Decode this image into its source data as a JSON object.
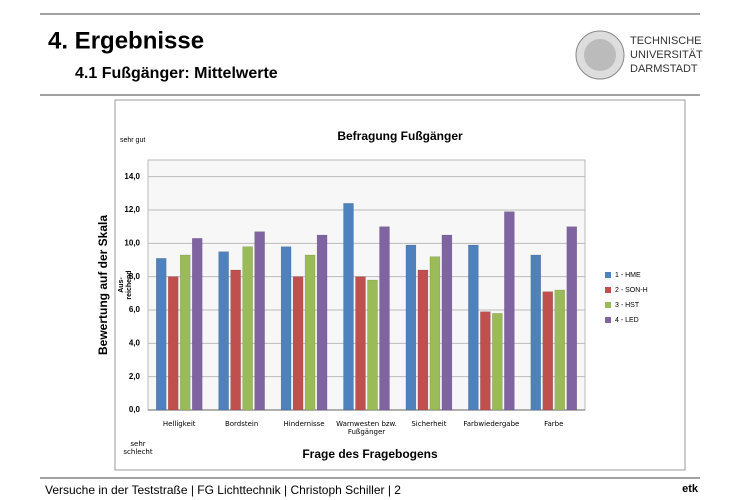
{
  "header": {
    "title": "4. Ergebnisse",
    "subtitle": "4.1 Fußgänger: Mittelwerte",
    "logo": [
      "TECHNISCHE",
      "UNIVERSITÄT",
      "DARMSTADT"
    ]
  },
  "footer": {
    "text": "Versuche in der Teststraße | FG Lichttechnik | Christoph Schiller | 2",
    "mark": "etk"
  },
  "chart_data": {
    "type": "bar",
    "title": "Befragung Fußgänger",
    "x_label": "Frage des Fragebogens",
    "y_label": "Bewertung auf der Skala",
    "annotations": {
      "top": "sehr gut",
      "middle": [
        "Aus-",
        "reichend"
      ],
      "bottom": "sehr schlecht"
    },
    "categories": [
      "Helligkeit",
      "Bordstein",
      "Hindernisse",
      "Warnwesten bzw. Fußgänger",
      "Sicherheit",
      "Farbwiedergabe",
      "Farbe"
    ],
    "series": [
      {
        "name": "1 - HME",
        "color": "#4f81bd",
        "values": [
          9.1,
          9.5,
          9.8,
          12.4,
          9.9,
          9.9,
          9.3
        ]
      },
      {
        "name": "2 - SON-H",
        "color": "#c0504d",
        "values": [
          8.0,
          8.4,
          8.0,
          8.0,
          8.4,
          5.9,
          7.1
        ]
      },
      {
        "name": "3 - HST",
        "color": "#9bbb59",
        "values": [
          9.3,
          9.8,
          9.3,
          7.8,
          9.2,
          5.8,
          7.2
        ]
      },
      {
        "name": "4 - LED",
        "color": "#8064a2",
        "values": [
          10.3,
          10.7,
          10.5,
          11.0,
          10.5,
          11.9,
          11.0
        ]
      }
    ],
    "ylim": [
      0,
      15
    ],
    "yticks": [
      {
        "value": 0,
        "label": "0,0"
      },
      {
        "value": 2,
        "label": "2,0"
      },
      {
        "value": 4,
        "label": "4,0"
      },
      {
        "value": 6,
        "label": "6,0"
      },
      {
        "value": 8,
        "label": "8,0"
      },
      {
        "value": 10,
        "label": "10,0"
      },
      {
        "value": 12,
        "label": "12,0"
      },
      {
        "value": 14,
        "label": "14,0"
      }
    ],
    "grid": true,
    "legend": "right"
  }
}
